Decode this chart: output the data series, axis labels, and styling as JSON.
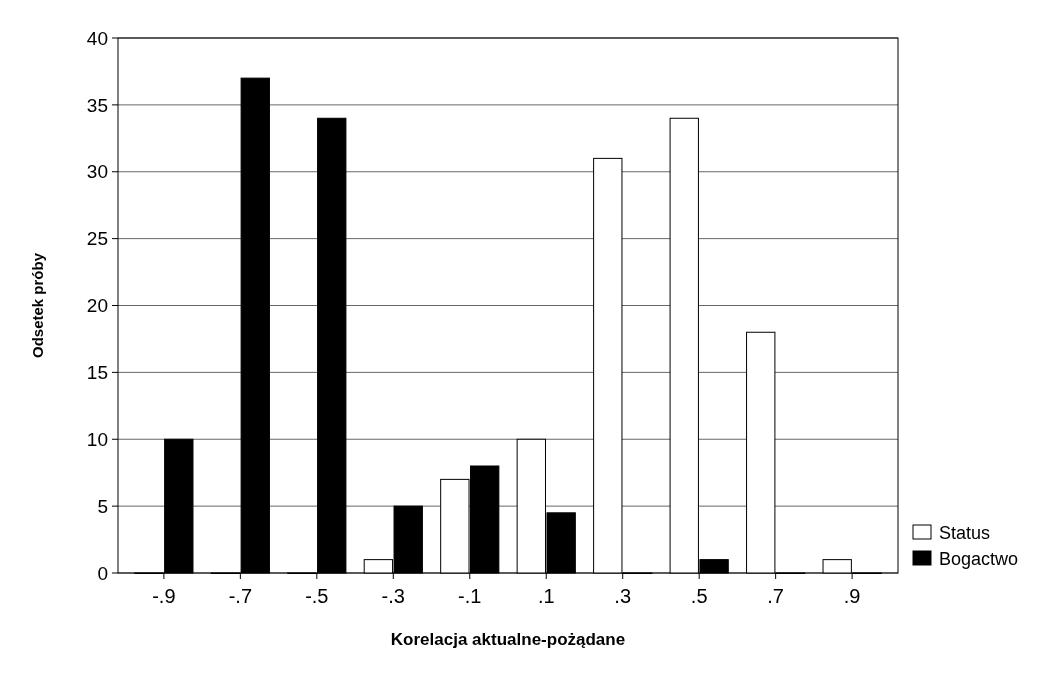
{
  "chart_data": {
    "type": "bar",
    "xlabel": "Korelacja aktualne-pożądane",
    "ylabel": "Odsetek próby",
    "categories": [
      "-.9",
      "-.7",
      "-.5",
      "-.3",
      "-.1",
      ".1",
      ".3",
      ".5",
      ".7",
      ".9"
    ],
    "series": [
      {
        "name": "Status",
        "color": "#ffffff",
        "values": [
          0,
          0,
          0,
          1,
          7,
          10,
          31,
          34,
          18,
          1
        ]
      },
      {
        "name": "Bogactwo",
        "color": "#000000",
        "values": [
          10,
          37,
          34,
          5,
          8,
          4.5,
          0,
          1,
          0,
          0
        ]
      }
    ],
    "ylim": [
      0,
      40
    ],
    "yticks": [
      0,
      5,
      10,
      15,
      20,
      25,
      30,
      35,
      40
    ],
    "grid": "y",
    "legend": "right"
  }
}
